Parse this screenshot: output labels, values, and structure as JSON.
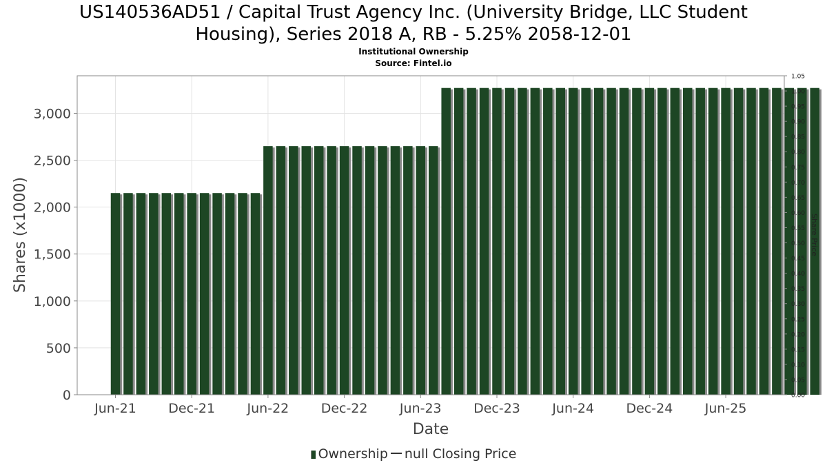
{
  "title_line1": "US140536AD51 / Capital Trust Agency Inc. (University Bridge, LLC Student",
  "title_line2": "Housing), Series 2018 A, RB - 5.25% 2058-12-01",
  "subtitle": "Institutional Ownership",
  "source": "Source: Fintel.io",
  "legend": {
    "ownership": "Ownership",
    "price": "null Closing Price"
  },
  "colors": {
    "bar": "#1d4624",
    "bar_shadow": "#8a8a8a",
    "grid": "#e3e3e3"
  },
  "chart_data": {
    "type": "bar",
    "xlabel": "Date",
    "ylabel": "Shares (x1000)",
    "y2label": "Share Price",
    "ylim": [
      0,
      3400
    ],
    "y2lim": [
      0,
      1.05
    ],
    "y_ticks": [
      {
        "value": 0,
        "label": "0"
      },
      {
        "value": 500,
        "label": "500"
      },
      {
        "value": 1000,
        "label": "1,000"
      },
      {
        "value": 1500,
        "label": "1,500"
      },
      {
        "value": 2000,
        "label": "2,000"
      },
      {
        "value": 2500,
        "label": "2,500"
      },
      {
        "value": 3000,
        "label": "3,000"
      }
    ],
    "y2_ticks": [
      "0.00",
      "0.05",
      "0.10",
      "0.15",
      "0.20",
      "0.25",
      "0.30",
      "0.35",
      "0.40",
      "0.45",
      "0.50",
      "0.55",
      "0.60",
      "0.65",
      "0.70",
      "0.75",
      "0.80",
      "0.85",
      "0.90",
      "0.95",
      "1.00",
      "1.05"
    ],
    "x_ticks": [
      "Jun-21",
      "Dec-21",
      "Jun-22",
      "Dec-22",
      "Jun-23",
      "Dec-23",
      "Jun-24",
      "Dec-24",
      "Jun-25"
    ],
    "grid": true,
    "legend_position": "bottom",
    "series": [
      {
        "name": "Ownership",
        "values": [
          2150,
          2150,
          2150,
          2150,
          2150,
          2150,
          2150,
          2150,
          2150,
          2150,
          2150,
          2150,
          2650,
          2650,
          2650,
          2650,
          2650,
          2650,
          2650,
          2650,
          2650,
          2650,
          2650,
          2650,
          2650,
          2650,
          3270,
          3270,
          3270,
          3270,
          3270,
          3270,
          3270,
          3270,
          3270,
          3270,
          3270,
          3270,
          3270,
          3270,
          3270,
          3270,
          3270,
          3270,
          3270,
          3270,
          3270,
          3270,
          3270,
          3270,
          3270,
          3270,
          3270,
          3270,
          3270,
          3270
        ]
      }
    ]
  }
}
